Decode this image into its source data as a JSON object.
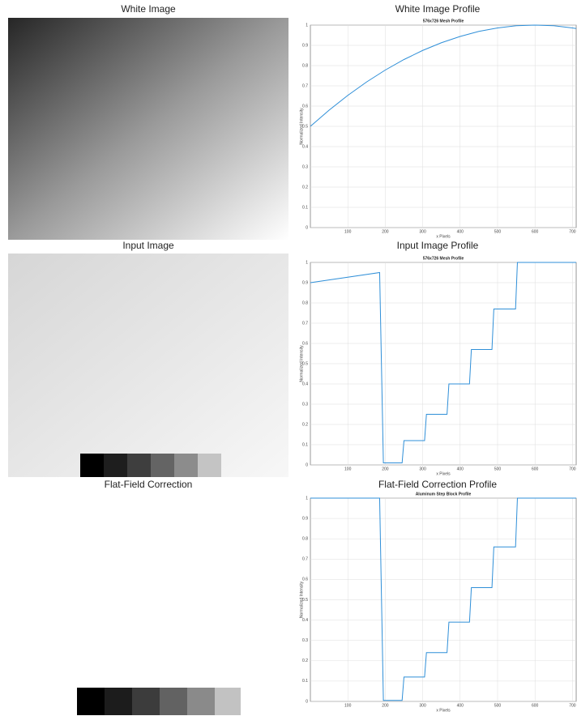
{
  "images": [
    {
      "title": "White Image"
    },
    {
      "title": "Input Image"
    },
    {
      "title": "Flat-Field Correction"
    }
  ],
  "chart_data": [
    {
      "type": "line",
      "heading": "White Image Profile",
      "title": "576x726 Mesh Profile",
      "xlabel": "x Pixels",
      "ylabel": "Normalized Intensity",
      "color": "#2f8fd8",
      "x": [
        0,
        50,
        100,
        150,
        200,
        250,
        300,
        350,
        400,
        450,
        500,
        550,
        600,
        650,
        700,
        710
      ],
      "values": [
        0.5,
        0.58,
        0.653,
        0.719,
        0.778,
        0.83,
        0.875,
        0.913,
        0.944,
        0.969,
        0.986,
        0.997,
        1,
        0.997,
        0.986,
        0.983
      ],
      "xlim": [
        0,
        710
      ],
      "ylim": [
        0,
        1
      ],
      "xticks": [
        100,
        200,
        300,
        400,
        500,
        600,
        700
      ],
      "yticks": [
        0,
        0.1,
        0.2,
        0.3,
        0.4,
        0.5,
        0.6,
        0.7,
        0.8,
        0.9,
        1
      ],
      "grid": true
    },
    {
      "type": "line",
      "heading": "Input Image Profile",
      "title": "576x726 Mesh Profile",
      "xlabel": "x Pixels",
      "ylabel": "Normalized Intensity",
      "color": "#2f8fd8",
      "x": [
        0,
        185,
        195,
        245,
        250,
        305,
        310,
        365,
        370,
        425,
        430,
        485,
        490,
        548,
        553,
        710
      ],
      "values": [
        0.9,
        0.95,
        0.01,
        0.01,
        0.12,
        0.12,
        0.25,
        0.25,
        0.4,
        0.4,
        0.57,
        0.57,
        0.77,
        0.77,
        1,
        1
      ],
      "xlim": [
        0,
        710
      ],
      "ylim": [
        0,
        1
      ],
      "xticks": [
        100,
        200,
        300,
        400,
        500,
        600,
        700
      ],
      "yticks": [
        0,
        0.1,
        0.2,
        0.3,
        0.4,
        0.5,
        0.6,
        0.7,
        0.8,
        0.9,
        1
      ],
      "grid": true
    },
    {
      "type": "line",
      "heading": "Flat-Field Correction Profile",
      "title": "Aluminum Step Block Profile",
      "xlabel": "x Pixels",
      "ylabel": "Normalized Intensity",
      "color": "#2f8fd8",
      "x": [
        0,
        185,
        195,
        245,
        250,
        305,
        310,
        365,
        370,
        425,
        430,
        485,
        490,
        548,
        553,
        710
      ],
      "values": [
        1,
        1,
        0.005,
        0.005,
        0.12,
        0.12,
        0.24,
        0.24,
        0.39,
        0.39,
        0.56,
        0.56,
        0.76,
        0.76,
        1,
        1
      ],
      "xlim": [
        0,
        710
      ],
      "ylim": [
        0,
        1
      ],
      "xticks": [
        100,
        200,
        300,
        400,
        500,
        600,
        700
      ],
      "yticks": [
        0,
        0.1,
        0.2,
        0.3,
        0.4,
        0.5,
        0.6,
        0.7,
        0.8,
        0.9,
        1
      ],
      "grid": true
    }
  ]
}
